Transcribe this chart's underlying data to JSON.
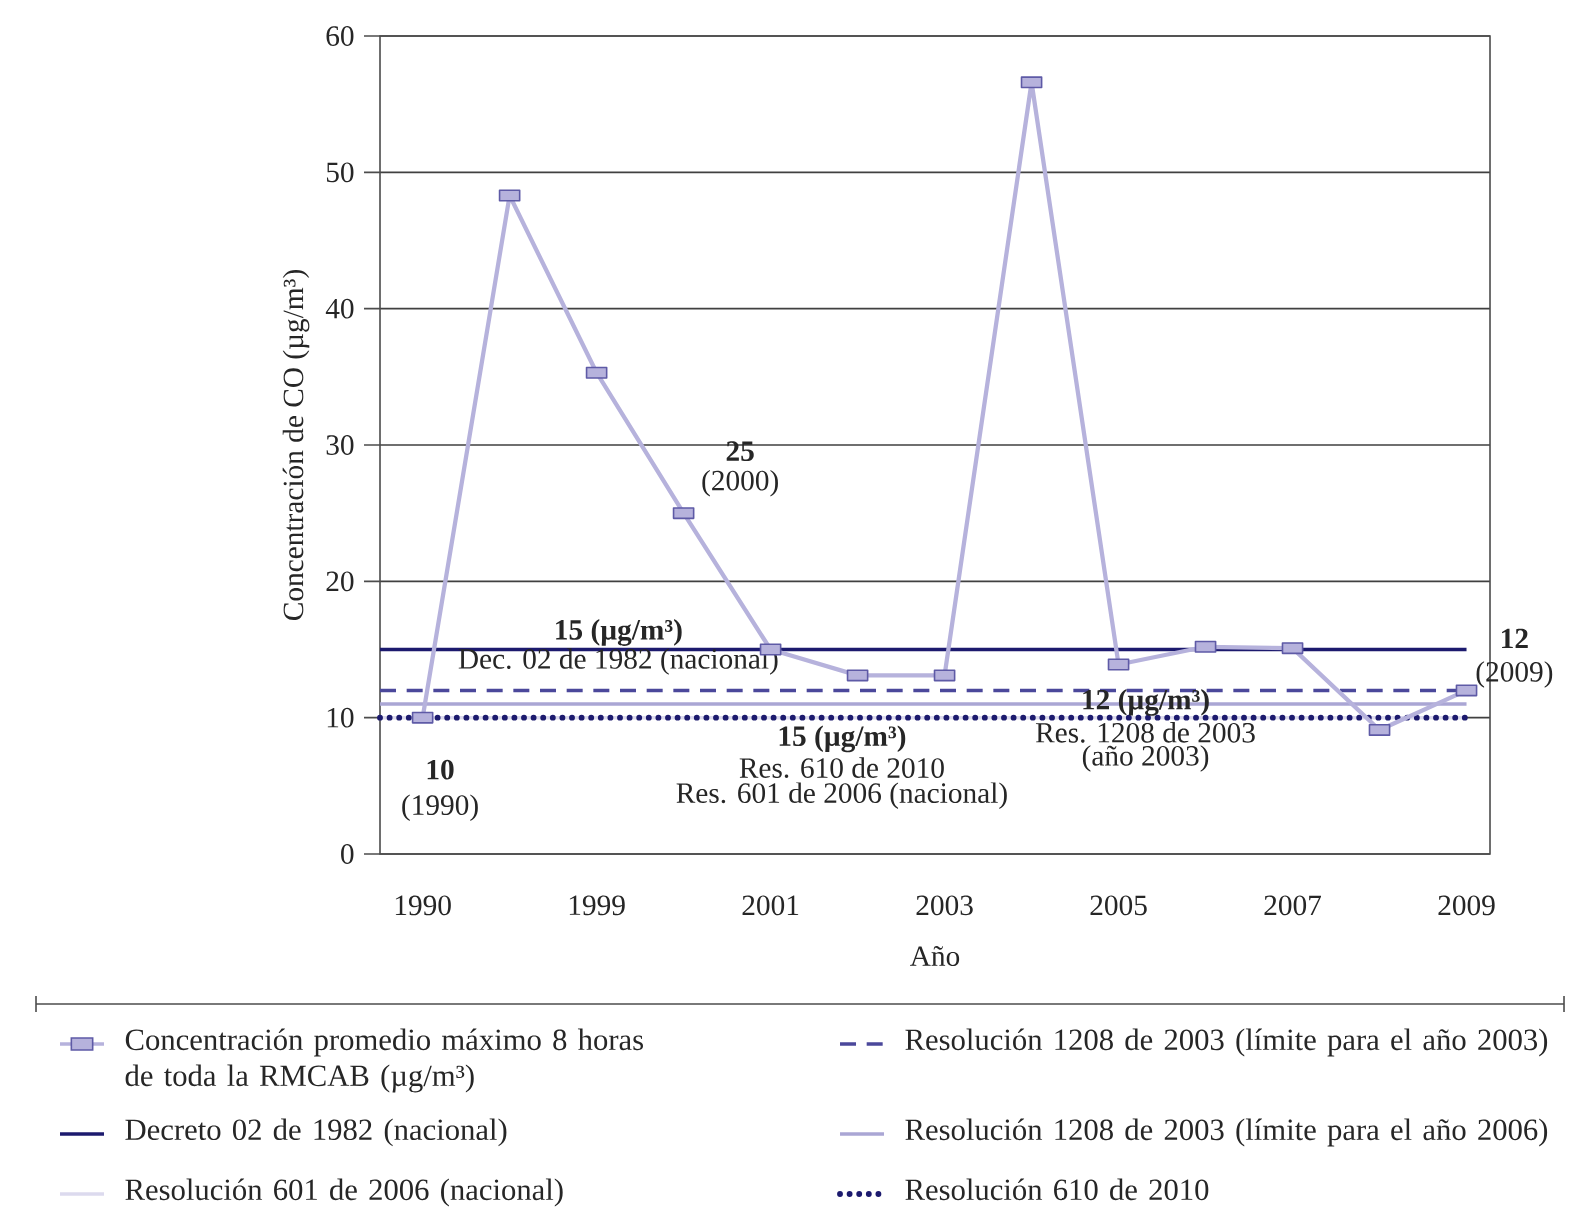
{
  "chart_data": {
    "type": "line",
    "xlabel": "Año",
    "ylabel": "Concentración de CO (µg/m³)",
    "categories": [
      "1990",
      null,
      "1999",
      null,
      "2001",
      null,
      "2003",
      null,
      "2005",
      null,
      "2007",
      null,
      "2009"
    ],
    "series": [
      {
        "name": "Concentración promedio máximo 8 horas de toda la RMCAB (µg/m³)",
        "color": "#b6b2dc",
        "marker": "square",
        "values": [
          10,
          48.3,
          35.3,
          25,
          15,
          13.1,
          13.1,
          56.6,
          13.9,
          15.2,
          15.1,
          9.1,
          12
        ]
      }
    ],
    "ylim": [
      0,
      60
    ],
    "yticks": [
      0,
      10,
      20,
      30,
      40,
      50,
      60
    ],
    "grid": "y",
    "legend": "bottom",
    "ref_lines": [
      {
        "axis": "y",
        "value": 15,
        "label": "Decreto 02 de 1982 (nacional)",
        "color": "#1c1a6e",
        "line_style": "solid"
      },
      {
        "axis": "y",
        "value": 10,
        "label": "Resolución 601 de 2006 (nacional)",
        "color": "#dcdaee",
        "line_style": "solid"
      },
      {
        "axis": "y",
        "value": 12,
        "label": "Resolución 1208 de 2003 (límite para el año 2003)",
        "color": "#4b489b",
        "line_style": "dashed"
      },
      {
        "axis": "y",
        "value": 11,
        "label": "Resolución 1208 de 2003 (límite para el año 2006)",
        "color": "#aaa6d4",
        "line_style": "solid"
      },
      {
        "axis": "y",
        "value": 10,
        "label": "Resolución 610 de 2010",
        "color": "#1c1a6e",
        "line_style": "dotted"
      }
    ],
    "annotations": [
      {
        "text": "10",
        "x": "1990",
        "y": 10
      },
      {
        "text": "(1990)",
        "x": "1990",
        "y": 10
      },
      "25",
      "(2000)",
      {
        "text": "12",
        "x": "2009",
        "y": 12
      },
      {
        "text": "(2009)",
        "x": "2009",
        "y": 12
      },
      {
        "text": "15 (µg/m³)",
        "y": 15
      },
      {
        "text": "Dec. 02 de 1982 (nacional)",
        "y": 15
      },
      {
        "text": "15 (µg/m³)",
        "y": 10
      },
      {
        "text": "Res. 610 de 2010",
        "y": 10
      },
      {
        "text": "Res. 601 de 2006 (nacional)",
        "y": 10
      },
      {
        "text": "12 (µg/m³)",
        "y": 12
      },
      {
        "text": "Res. 1208 de 2003",
        "y": 12
      },
      {
        "text": "(año 2003)",
        "y": 12
      }
    ]
  }
}
